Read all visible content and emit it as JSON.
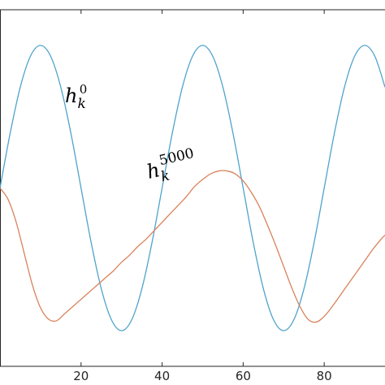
{
  "chart_data": {
    "type": "line",
    "title": "",
    "xlabel": "",
    "ylabel": "",
    "xlim": [
      0,
      95
    ],
    "ylim": [
      -1.25,
      1.25
    ],
    "x_ticks": [
      0,
      20,
      40,
      60,
      80
    ],
    "x_tick_labels": [
      "",
      "20",
      "40",
      "60",
      "80"
    ],
    "grid": false,
    "legend": "none",
    "colors": {
      "h0": "#4fa3cc",
      "h5000": "#d9825b",
      "axis": "#262626"
    },
    "series": [
      {
        "label_base": "h",
        "label_sub": "k",
        "label_sup": "0",
        "x": [
          0,
          2.5,
          5,
          7.5,
          10,
          12.5,
          15,
          17.5,
          20,
          22.5,
          25,
          27.5,
          30,
          32.5,
          35,
          37.5,
          40,
          42.5,
          45,
          47.5,
          50,
          52.5,
          55,
          57.5,
          60,
          62.5,
          65,
          67.5,
          70,
          72.5,
          75,
          77.5,
          80,
          82.5,
          85,
          87.5,
          90,
          92.5,
          95
        ],
        "y": [
          0.0,
          0.383,
          0.707,
          0.924,
          1.0,
          0.924,
          0.707,
          0.383,
          0.0,
          -0.383,
          -0.707,
          -0.924,
          -1.0,
          -0.924,
          -0.707,
          -0.383,
          0.0,
          0.383,
          0.707,
          0.924,
          1.0,
          0.924,
          0.707,
          0.383,
          0.0,
          -0.383,
          -0.707,
          -0.924,
          -1.0,
          -0.924,
          -0.707,
          -0.383,
          0.0,
          0.383,
          0.707,
          0.924,
          1.0,
          0.924,
          0.707
        ]
      },
      {
        "label_base": "h",
        "label_sub": "k",
        "label_sup": "5000",
        "x": [
          0,
          2,
          4,
          6,
          8,
          10,
          12,
          14,
          16,
          18,
          20,
          22,
          24,
          26,
          28,
          30,
          32,
          34,
          36,
          38,
          40,
          42,
          44,
          46,
          48,
          50,
          52,
          54,
          56,
          58,
          60,
          62,
          64,
          66,
          68,
          70,
          72,
          74,
          76,
          78,
          80,
          82,
          84,
          86,
          88,
          90,
          92,
          94,
          95
        ],
        "y": [
          0.0,
          -0.08,
          -0.24,
          -0.46,
          -0.68,
          -0.84,
          -0.92,
          -0.93,
          -0.88,
          -0.83,
          -0.78,
          -0.73,
          -0.68,
          -0.63,
          -0.58,
          -0.52,
          -0.47,
          -0.41,
          -0.36,
          -0.3,
          -0.24,
          -0.18,
          -0.12,
          -0.06,
          0.01,
          0.06,
          0.1,
          0.12,
          0.12,
          0.1,
          0.05,
          -0.03,
          -0.13,
          -0.26,
          -0.4,
          -0.55,
          -0.7,
          -0.83,
          -0.92,
          -0.94,
          -0.9,
          -0.83,
          -0.75,
          -0.67,
          -0.59,
          -0.51,
          -0.43,
          -0.36,
          -0.33
        ]
      }
    ]
  }
}
